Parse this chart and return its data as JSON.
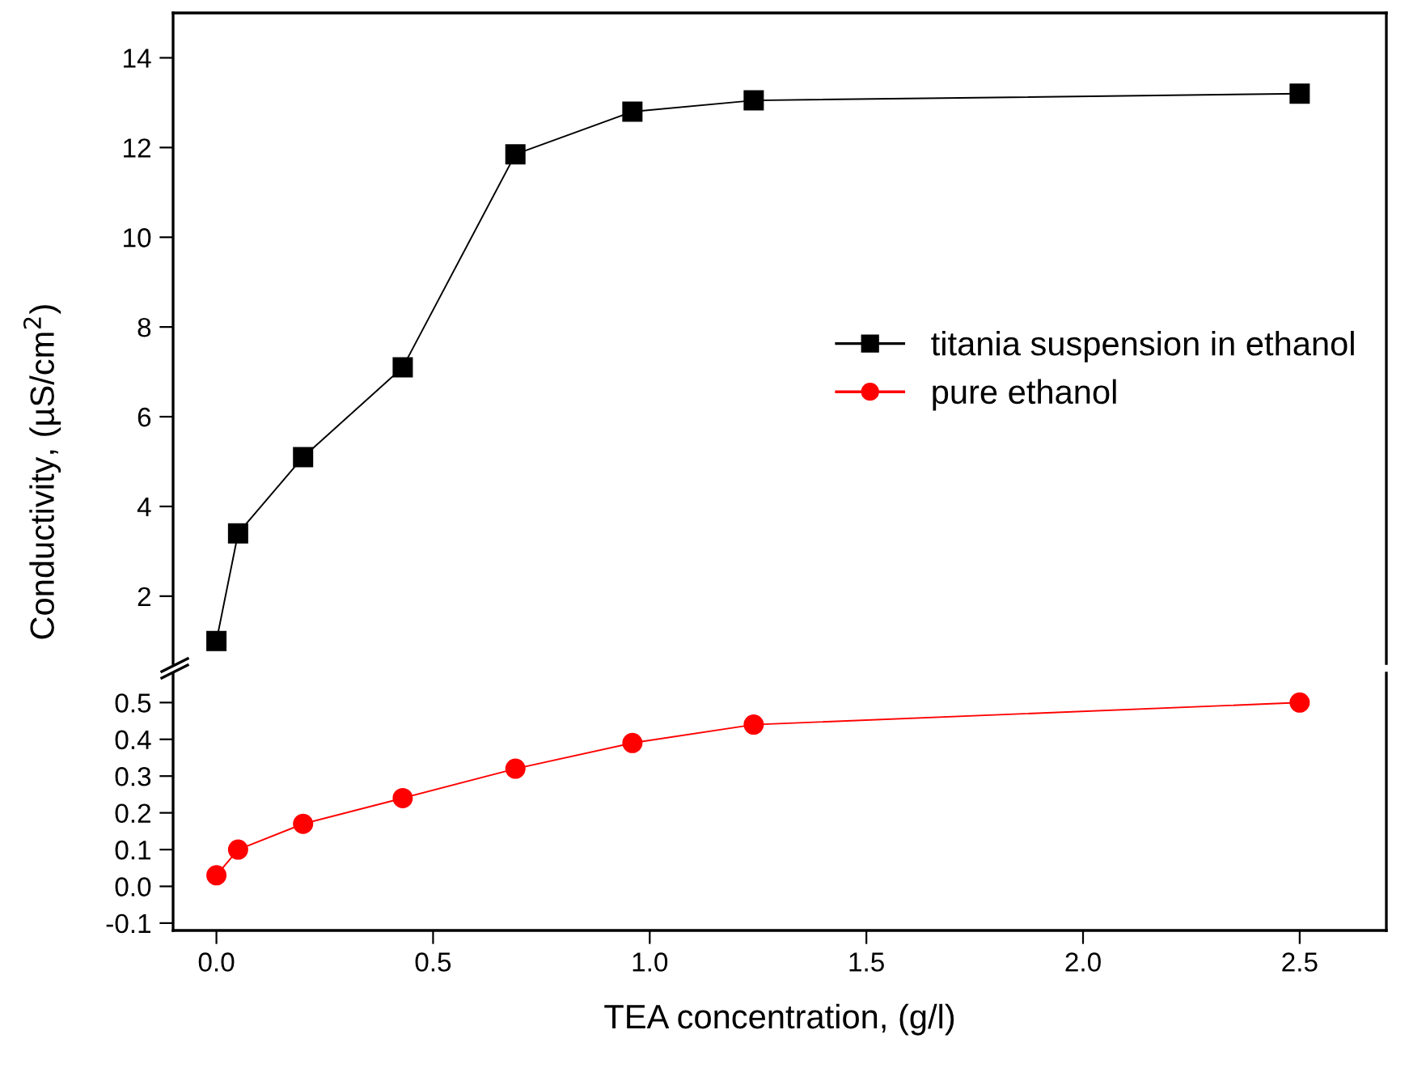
{
  "chart_data": [
    {
      "type": "line",
      "ylabel": "Conductivity, (µS/cm$^{2}$)",
      "x": [
        0,
        0.05,
        0.2,
        0.43,
        0.69,
        0.96,
        1.24,
        2.5
      ],
      "xlim": [
        -0.1,
        2.7
      ],
      "ylim": [
        0.5,
        15
      ],
      "yticks": [
        2,
        4,
        6,
        8,
        10,
        12,
        14
      ],
      "tick_labels": "y",
      "legend": "right",
      "grid": false,
      "series": [
        {
          "name": "titania suspension in ethanol",
          "color": "#000000",
          "marker": "square",
          "values": [
            1.0,
            3.4,
            5.1,
            7.1,
            11.85,
            12.8,
            13.05,
            13.2
          ]
        }
      ]
    },
    {
      "type": "line",
      "xlabel": "TEA concentration, (g/l)",
      "x": [
        0,
        0.05,
        0.2,
        0.43,
        0.69,
        0.96,
        1.24,
        2.5
      ],
      "xlim": [
        -0.1,
        2.7
      ],
      "xticks": [
        {
          "value": 0,
          "label": "0.0"
        },
        0.5,
        {
          "value": 1,
          "label": "1.0"
        },
        1.5,
        {
          "value": 2,
          "label": "2.0"
        },
        2.5
      ],
      "ylim": [
        -0.12,
        0.58
      ],
      "yticks": [
        -0.1,
        {
          "value": 0,
          "label": "0.0"
        },
        0.1,
        0.2,
        0.3,
        0.4,
        0.5
      ],
      "grid": false,
      "series": [
        {
          "name": "pure ethanol",
          "color": "#ff0000",
          "marker": "circle",
          "values": [
            0.03,
            0.1,
            0.17,
            0.24,
            0.32,
            0.39,
            0.44,
            0.5
          ]
        }
      ]
    }
  ]
}
